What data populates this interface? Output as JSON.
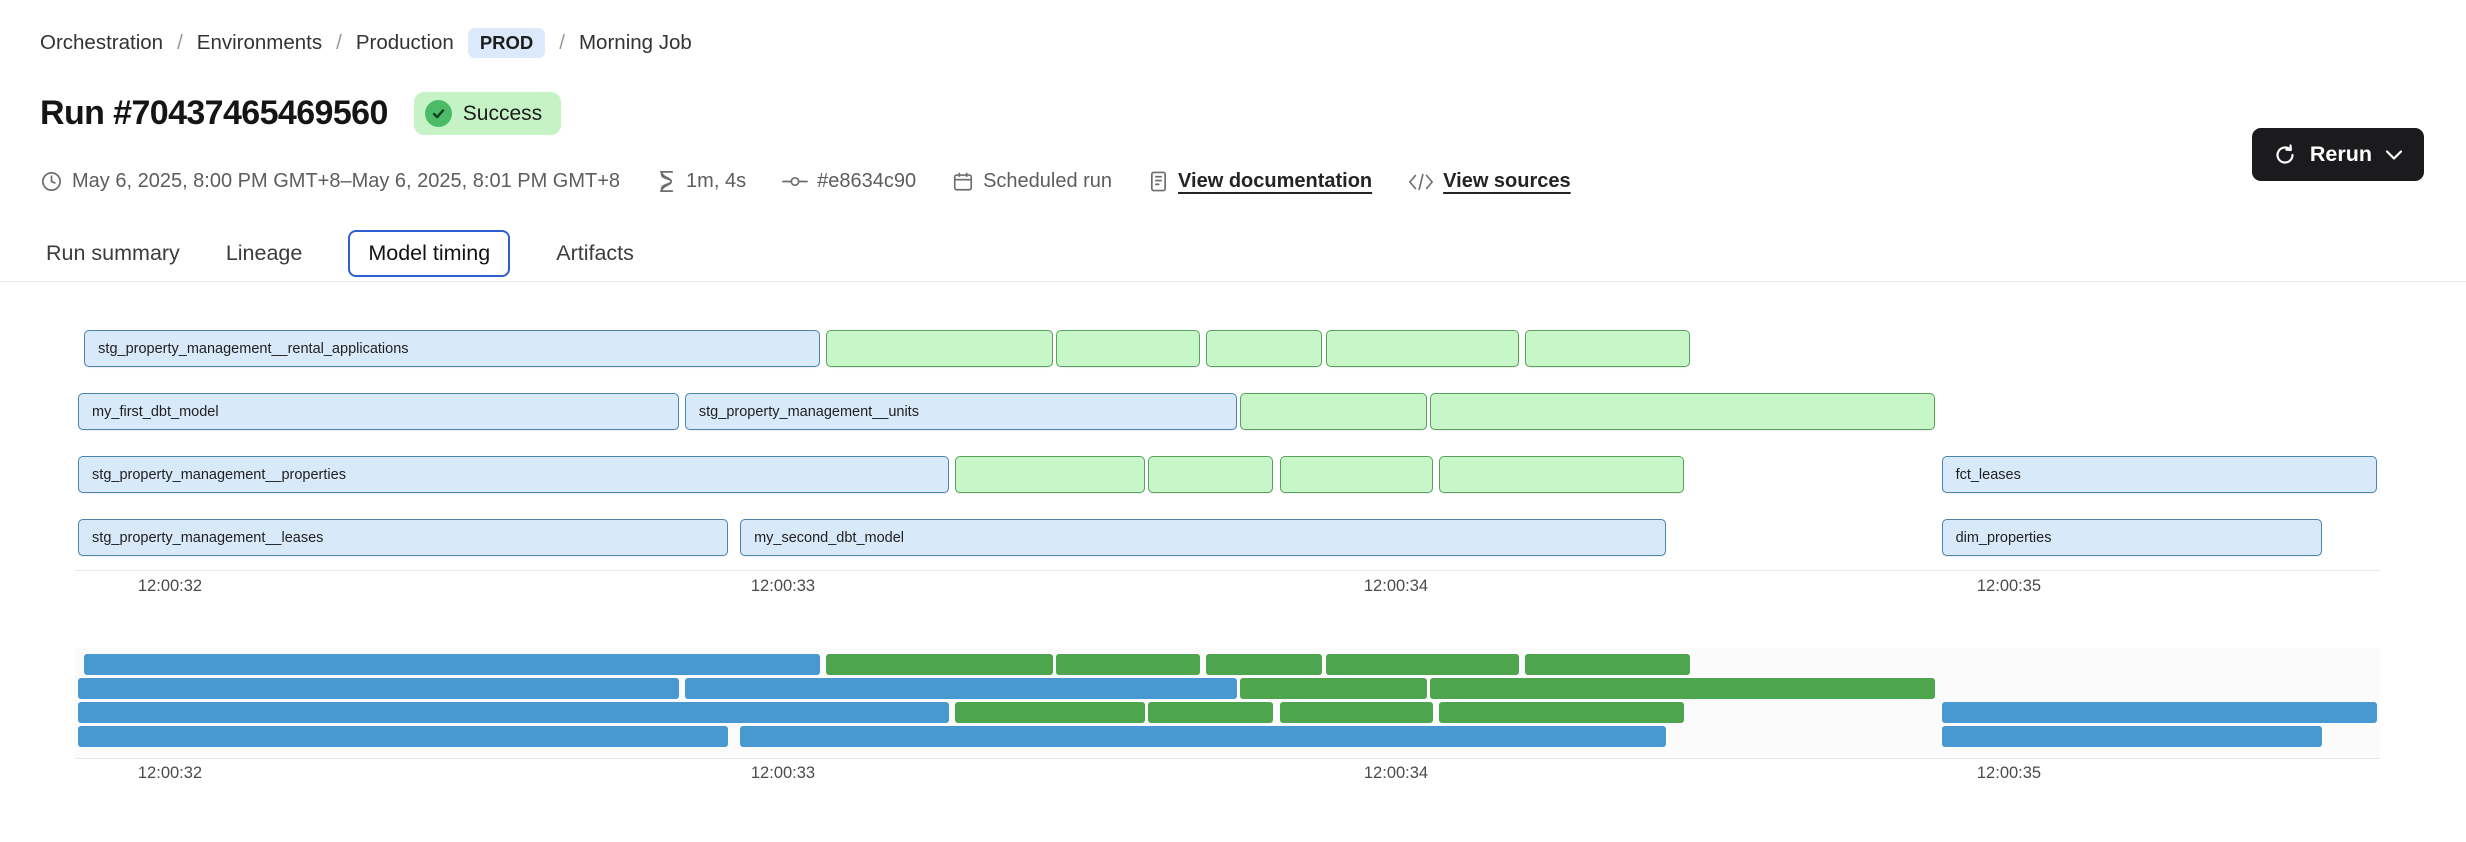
{
  "breadcrumb": {
    "separator": "/",
    "items": [
      "Orchestration",
      "Environments",
      "Production",
      "Morning Job"
    ],
    "env_badge": "PROD"
  },
  "header": {
    "title": "Run #70437465469560",
    "status": "Success"
  },
  "meta": {
    "time_range": "May 6, 2025, 8:00 PM GMT+8–May 6, 2025, 8:01 PM GMT+8",
    "duration": "1m, 4s",
    "commit": "#e8634c90",
    "trigger": "Scheduled run",
    "documentation_link": "View documentation",
    "sources_link": "View sources"
  },
  "actions": {
    "rerun_label": "Rerun"
  },
  "tabs": {
    "items": [
      "Run summary",
      "Lineage",
      "Model timing",
      "Artifacts"
    ],
    "active": "Model timing"
  },
  "colors": {
    "accent_blue": "#2f5fcf",
    "badge_env_bg": "#dce8fb",
    "success_bg": "#c5f3c6",
    "success_icon": "#4cbb66",
    "button_dark": "#1b1b1d",
    "bar_blue_fill": "#d8e9f9",
    "bar_blue_border": "#4b84ae",
    "bar_green_fill": "#c7f6c8",
    "bar_green_border": "#58a05c",
    "mini_blue": "#4898d2",
    "mini_green": "#4da64d"
  },
  "chart_data": {
    "type": "gantt",
    "title": "",
    "xlabel": "",
    "x_axis": {
      "unit": "time",
      "range_s": [
        31.7,
        35.75
      ],
      "ticks": [
        {
          "label": "12:00:32",
          "t": 32
        },
        {
          "label": "12:00:33",
          "t": 33
        },
        {
          "label": "12:00:34",
          "t": 34
        },
        {
          "label": "12:00:35",
          "t": 35
        }
      ]
    },
    "grid": false,
    "minimap": true,
    "rows": [
      [
        {
          "label": "stg_property_management__rental_applications",
          "color": "blue",
          "start": 31.86,
          "end": 33.06
        },
        {
          "label": "",
          "color": "green",
          "start": 33.07,
          "end": 33.44
        },
        {
          "label": "",
          "color": "green",
          "start": 33.445,
          "end": 33.68
        },
        {
          "label": "",
          "color": "green",
          "start": 33.69,
          "end": 33.88
        },
        {
          "label": "",
          "color": "green",
          "start": 33.885,
          "end": 34.2
        },
        {
          "label": "",
          "color": "green",
          "start": 34.21,
          "end": 34.48
        }
      ],
      [
        {
          "label": "my_first_dbt_model",
          "color": "blue",
          "start": 31.85,
          "end": 32.83
        },
        {
          "label": "stg_property_management__units",
          "color": "blue",
          "start": 32.84,
          "end": 33.74
        },
        {
          "label": "",
          "color": "green",
          "start": 33.745,
          "end": 34.05
        },
        {
          "label": "",
          "color": "green",
          "start": 34.055,
          "end": 34.88
        }
      ],
      [
        {
          "label": "stg_property_management__properties",
          "color": "blue",
          "start": 31.85,
          "end": 33.27
        },
        {
          "label": "",
          "color": "green",
          "start": 33.28,
          "end": 33.59
        },
        {
          "label": "",
          "color": "green",
          "start": 33.595,
          "end": 33.8
        },
        {
          "label": "",
          "color": "green",
          "start": 33.81,
          "end": 34.06
        },
        {
          "label": "",
          "color": "green",
          "start": 34.07,
          "end": 34.47
        },
        {
          "label": "fct_leases",
          "color": "blue",
          "start": 34.89,
          "end": 35.6
        }
      ],
      [
        {
          "label": "stg_property_management__leases",
          "color": "blue",
          "start": 31.85,
          "end": 32.91
        },
        {
          "label": "my_second_dbt_model",
          "color": "blue",
          "start": 32.93,
          "end": 34.44
        },
        {
          "label": "dim_properties",
          "color": "blue",
          "start": 34.89,
          "end": 35.51
        }
      ]
    ]
  }
}
